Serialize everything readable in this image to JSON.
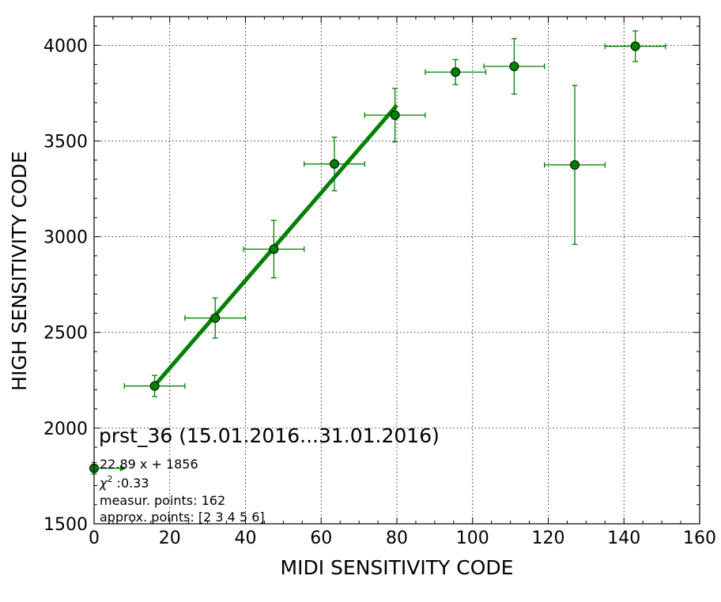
{
  "chart_data": {
    "type": "scatter",
    "title": "",
    "xlabel": "MIDI SENSITIVITY CODE",
    "ylabel": "HIGH SENSITIVITY CODE",
    "xlim": [
      0,
      160
    ],
    "ylim": [
      1500,
      4150
    ],
    "x_ticks": [
      0,
      20,
      40,
      60,
      80,
      100,
      120,
      140,
      160
    ],
    "y_ticks": [
      1500,
      2000,
      2500,
      3000,
      3500,
      4000
    ],
    "grid": true,
    "colors": {
      "series": "#008000",
      "marker_edge": "#000000",
      "fit": "#008000"
    },
    "series": [
      {
        "points": [
          {
            "x": 0,
            "y": 1790,
            "xerr": 0,
            "yerr": 30
          },
          {
            "x": 16,
            "y": 2220,
            "xerr": 8,
            "yerr": 55
          },
          {
            "x": 32,
            "y": 2575,
            "xerr": 8,
            "yerr": 105
          },
          {
            "x": 47.5,
            "y": 2935,
            "xerr": 8,
            "yerr": 150
          },
          {
            "x": 63.5,
            "y": 3380,
            "xerr": 8,
            "yerr": 140
          },
          {
            "x": 79.5,
            "y": 3635,
            "xerr": 8,
            "yerr": 140
          },
          {
            "x": 95.5,
            "y": 3860,
            "xerr": 8,
            "yerr": 65
          },
          {
            "x": 111,
            "y": 3890,
            "xerr": 8,
            "yerr": 145
          },
          {
            "x": 127,
            "y": 3375,
            "xerr": 8,
            "yerr": 415
          },
          {
            "x": 143,
            "y": 3995,
            "xerr": 8,
            "yerr": 80
          }
        ]
      }
    ],
    "fit_line": {
      "slope": 22.89,
      "intercept": 1856,
      "x_from": 16,
      "x_to": 80
    },
    "arrow": {
      "x_from": 0,
      "x_to": 8.5,
      "y": 1790
    },
    "annotations": {
      "title": "prst_36 (15.01.2016...31.01.2016)",
      "fit_text": "22.89 x + 1856",
      "chi_symbol": "χ",
      "chi_sup": "2",
      "chi_value": " :0.33",
      "measur_points": "measur. points: 162",
      "approx_points": "approx. points: [2 3 4 5 6]"
    }
  }
}
